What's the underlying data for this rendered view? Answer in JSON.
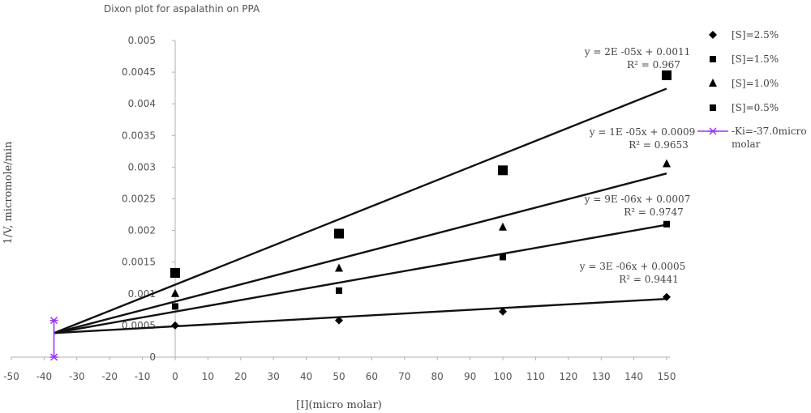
{
  "chart_data": {
    "type": "scatter",
    "title": "Dixon plot for aspalathin on PPA",
    "xlabel": "[I](micro molar)",
    "ylabel": "1/V, micromole/min",
    "xlim": [
      -50,
      150
    ],
    "ylim": [
      0,
      0.005
    ],
    "xticks": [
      "-50",
      "-40",
      "-30",
      "-20",
      "-10",
      "0",
      "10",
      "20",
      "30",
      "40",
      "50",
      "60",
      "70",
      "80",
      "90",
      "100",
      "110",
      "120",
      "130",
      "140",
      "150"
    ],
    "yticks": [
      "0",
      "0.0005",
      "0.001",
      "0.0015",
      "0.002",
      "0.0025",
      "0.003",
      "0.0035",
      "0.004",
      "0.0045",
      "0.005"
    ],
    "grid": false,
    "legend_position": "right",
    "series": [
      {
        "name": "[S]=2.5%",
        "marker": "diamond",
        "color": "#000000",
        "x": [
          0,
          50,
          100,
          150
        ],
        "y": [
          0.0005,
          0.00058,
          0.00072,
          0.00095
        ],
        "fit": {
          "slope": 3e-06,
          "intercept": 0.0005,
          "equation": "y = 3E -06x + 0.0005",
          "r2": "R² = 0.9441"
        }
      },
      {
        "name": "[S]=1.5%",
        "marker": "square-small",
        "color": "#000000",
        "x": [
          0,
          50,
          100,
          150
        ],
        "y": [
          0.0008,
          0.00105,
          0.00158,
          0.0021
        ],
        "fit": {
          "slope": 9e-06,
          "intercept": 0.0007,
          "equation": "y = 9E -06x + 0.0007",
          "r2": "R² = 0.9747"
        }
      },
      {
        "name": "[S]=1.0%",
        "marker": "triangle",
        "color": "#000000",
        "x": [
          0,
          50,
          100,
          150
        ],
        "y": [
          0.001,
          0.0014,
          0.00205,
          0.00305
        ],
        "fit": {
          "slope": 1e-05,
          "intercept": 0.0009,
          "equation": "y = 1E -05x + 0.0009",
          "r2": "R² = 0.9653"
        }
      },
      {
        "name": "[S]=0.5%",
        "marker": "square-large",
        "color": "#000000",
        "x": [
          0,
          50,
          100,
          150
        ],
        "y": [
          0.00133,
          0.00195,
          0.00295,
          0.00445
        ],
        "fit": {
          "slope": 2e-05,
          "intercept": 0.0011,
          "equation": "y = 2E -05x + 0.0011",
          "r2": "R² = 0.967"
        }
      },
      {
        "name": "-Ki=-37.0micro molar",
        "marker": "asterisk",
        "color": "#9933ff",
        "x": [
          -37,
          -37
        ],
        "y": [
          0,
          0.00058
        ]
      }
    ],
    "intersection": {
      "x": -37,
      "y": 0.00038
    }
  }
}
